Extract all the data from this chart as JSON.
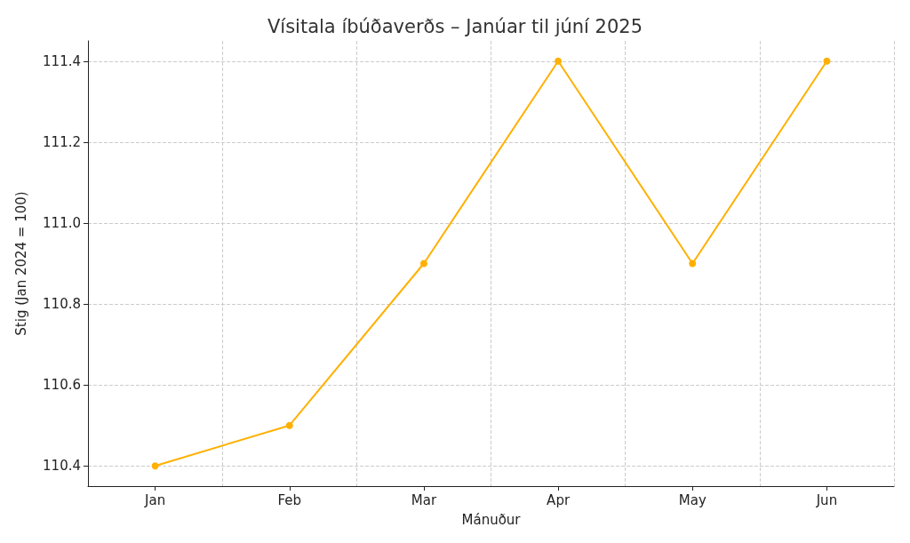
{
  "chart_data": {
    "type": "line",
    "title": "Vísitala íbúðaverðs – Janúar til júní 2025",
    "xlabel": "Mánuður",
    "ylabel": "Stig (Jan 2024 = 100)",
    "categories": [
      "Jan",
      "Feb",
      "Mar",
      "Apr",
      "May",
      "Jun"
    ],
    "series": [
      {
        "color": "#ffb000",
        "values": [
          110.4,
          110.5,
          110.9,
          111.4,
          110.9,
          111.4
        ]
      }
    ],
    "ylim": [
      110.35,
      111.45
    ],
    "yticks": [
      110.4,
      110.6,
      110.8,
      {
        "value": 111,
        "label": "111.0"
      },
      111.2,
      111.4
    ],
    "grid": true,
    "marker": "circle",
    "line_style": "solid"
  }
}
